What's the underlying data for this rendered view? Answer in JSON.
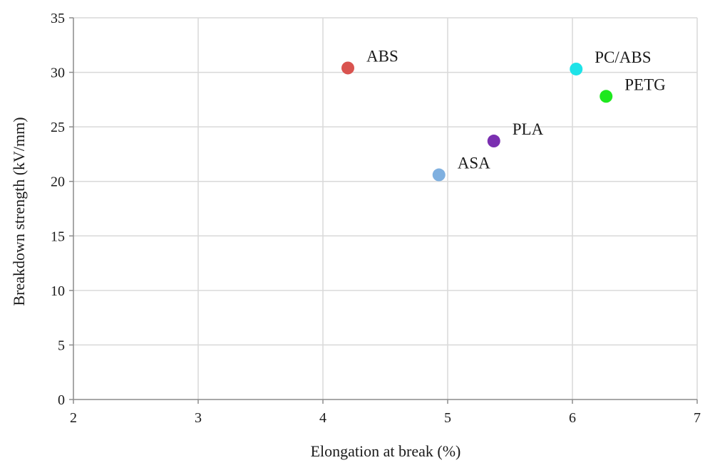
{
  "chart_data": {
    "type": "scatter",
    "title": "",
    "xlabel": "Elongation at break (%)",
    "ylabel": "Breakdown strength (kV/mm)",
    "xlim": [
      2,
      7
    ],
    "ylim": [
      0,
      35
    ],
    "x_ticks": [
      2,
      3,
      4,
      5,
      6,
      7
    ],
    "y_ticks": [
      0,
      5,
      10,
      15,
      20,
      25,
      30,
      35
    ],
    "grid": true,
    "legend": "none",
    "points": [
      {
        "label": "ABS",
        "x": 4.2,
        "y": 30.4,
        "color": "#d9534f"
      },
      {
        "label": "PC/ABS",
        "x": 6.03,
        "y": 30.3,
        "color": "#1ee3e8"
      },
      {
        "label": "PETG",
        "x": 6.27,
        "y": 27.8,
        "color": "#1ee81e"
      },
      {
        "label": "PLA",
        "x": 5.37,
        "y": 23.7,
        "color": "#7a2fb0"
      },
      {
        "label": "ASA",
        "x": 4.93,
        "y": 20.6,
        "color": "#7fb0e0"
      }
    ]
  }
}
